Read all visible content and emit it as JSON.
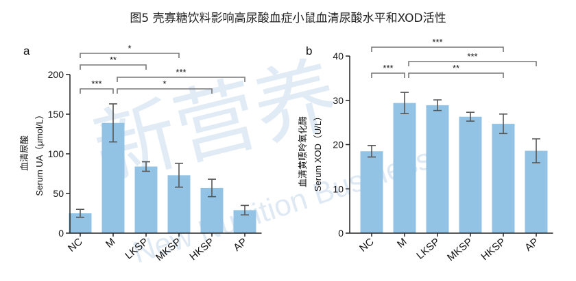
{
  "figure_title": "图5 壳寡糖饮料影响高尿酸血症小鼠血清尿酸水平和XOD活性",
  "watermark": {
    "cn": "新营养",
    "en": "New Nutrition Business",
    "mark": "®"
  },
  "colors": {
    "bar": "#93c3e4",
    "axis": "#222222",
    "bracket": "#777777",
    "error": "#555555"
  },
  "chart_data": [
    {
      "panel": "a",
      "type": "bar",
      "categories": [
        "NC",
        "M",
        "LKSP",
        "MKSP",
        "HKSP",
        "AP"
      ],
      "values": [
        25,
        139,
        84,
        73,
        57,
        29
      ],
      "errors": [
        5,
        24,
        6,
        15,
        11,
        6
      ],
      "ylim": [
        0,
        200
      ],
      "yticks": [
        0,
        50,
        100,
        150,
        200
      ],
      "ylabel_cn": "血清尿酸",
      "ylabel_en": "Serum UA（μmol/L）",
      "significance": [
        {
          "from": 0,
          "to": 1,
          "label": "***"
        },
        {
          "from": 0,
          "to": 2,
          "label": "**"
        },
        {
          "from": 0,
          "to": 3,
          "label": "*"
        },
        {
          "from": 1,
          "to": 4,
          "label": "*"
        },
        {
          "from": 1,
          "to": 5,
          "label": "***"
        }
      ]
    },
    {
      "panel": "b",
      "type": "bar",
      "categories": [
        "NC",
        "M",
        "LKSP",
        "MKSP",
        "HKSP",
        "AP"
      ],
      "values": [
        18.5,
        29.4,
        28.9,
        26.3,
        24.7,
        18.6
      ],
      "errors": [
        1.3,
        2.4,
        1.2,
        1.0,
        2.2,
        2.7
      ],
      "ylim": [
        0,
        40
      ],
      "yticks": [
        0,
        10,
        20,
        30,
        40
      ],
      "ylabel_cn": "血清黄嘌呤氧化酶",
      "ylabel_en": "Serum XOD（U/L）",
      "significance": [
        {
          "from": 0,
          "to": 1,
          "label": "***"
        },
        {
          "from": 0,
          "to": 4,
          "label": "***"
        },
        {
          "from": 1,
          "to": 5,
          "label": "***"
        },
        {
          "from": 1,
          "to": 4,
          "label": "**"
        }
      ]
    }
  ]
}
